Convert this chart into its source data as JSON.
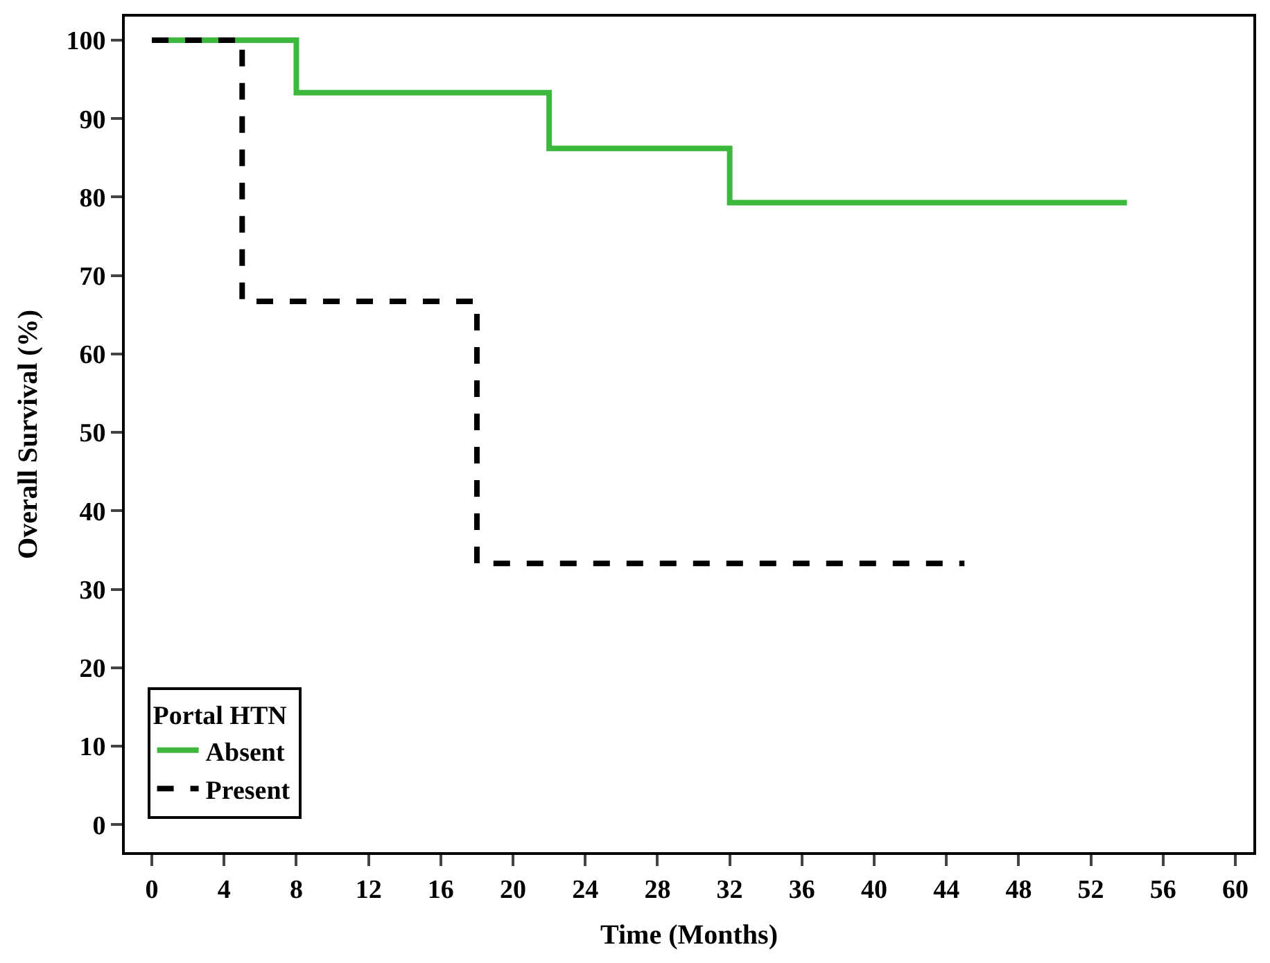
{
  "chart_data": {
    "type": "step",
    "xlabel": "Time (Months)",
    "ylabel": "Overall Survival (%)",
    "legend_title": "Portal HTN",
    "legend": "bottom left",
    "xlim": [
      -1.5,
      61
    ],
    "xticks": [
      0,
      4,
      8,
      12,
      16,
      20,
      24,
      28,
      32,
      36,
      40,
      44,
      48,
      52,
      56,
      60
    ],
    "ylim": [
      -3.5,
      103
    ],
    "yticks": [
      0,
      10,
      20,
      30,
      40,
      50,
      60,
      70,
      80,
      90,
      100
    ],
    "series": [
      {
        "name": "Absent",
        "color": "#3cb93c",
        "line_style": "solid",
        "x": [
          0,
          8,
          22,
          32,
          54
        ],
        "values": [
          100,
          93.3,
          86.2,
          79.3,
          79.3
        ]
      },
      {
        "name": "Present",
        "color": "#000000",
        "line_style": "dashed",
        "x": [
          0,
          5,
          18,
          45
        ],
        "values": [
          100,
          66.7,
          33.3,
          33.3
        ]
      }
    ]
  }
}
